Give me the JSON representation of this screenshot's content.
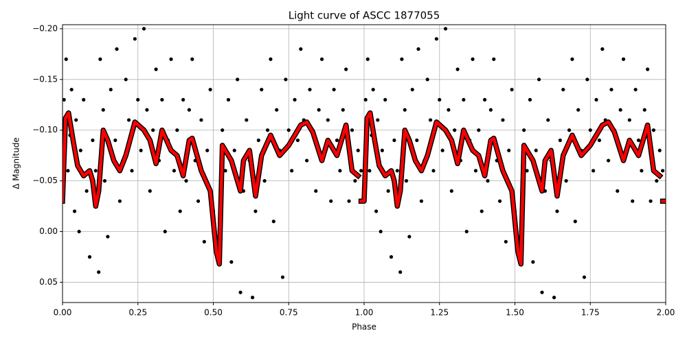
{
  "chart_data": {
    "type": "scatter",
    "title": "Light curve of ASCC 1877055",
    "xlabel": "Phase",
    "ylabel": "Δ Magnitude",
    "xlim": [
      0,
      2
    ],
    "ylim": [
      0.07,
      -0.204
    ],
    "xticks": [
      {
        "value": 0,
        "label": "0.00"
      },
      {
        "value": 0.25,
        "label": "0.25"
      },
      {
        "value": 0.5,
        "label": "0.50"
      },
      {
        "value": 0.75,
        "label": "0.75"
      },
      {
        "value": 1,
        "label": "1.00"
      },
      {
        "value": 1.25,
        "label": "1.25"
      },
      {
        "value": 1.5,
        "label": "1.50"
      },
      {
        "value": 1.75,
        "label": "1.75"
      },
      {
        "value": 2,
        "label": "2.00"
      }
    ],
    "yticks": [
      {
        "value": -0.2,
        "label": "−0.20"
      },
      {
        "value": -0.15,
        "label": "−0.15"
      },
      {
        "value": -0.1,
        "label": "−0.10"
      },
      {
        "value": -0.05,
        "label": "−0.05"
      },
      {
        "value": 0,
        "label": "0.00"
      },
      {
        "value": 0.05,
        "label": "0.05"
      }
    ],
    "grid": true,
    "points": {
      "color": "#000000",
      "x": [
        0.005,
        0.012,
        0.018,
        0.025,
        0.03,
        0.04,
        0.045,
        0.055,
        0.06,
        0.07,
        0.08,
        0.09,
        0.1,
        0.11,
        0.12,
        0.125,
        0.135,
        0.14,
        0.15,
        0.16,
        0.175,
        0.18,
        0.19,
        0.2,
        0.21,
        0.22,
        0.23,
        0.24,
        0.25,
        0.26,
        0.27,
        0.28,
        0.29,
        0.3,
        0.31,
        0.32,
        0.33,
        0.34,
        0.35,
        0.36,
        0.37,
        0.38,
        0.39,
        0.4,
        0.41,
        0.42,
        0.43,
        0.44,
        0.45,
        0.46,
        0.47,
        0.48,
        0.49,
        0.5,
        0.52,
        0.53,
        0.54,
        0.55,
        0.56,
        0.57,
        0.58,
        0.59,
        0.6,
        0.61,
        0.62,
        0.63,
        0.64,
        0.65,
        0.66,
        0.67,
        0.68,
        0.69,
        0.7,
        0.71,
        0.72,
        0.73,
        0.74,
        0.75,
        0.76,
        0.77,
        0.78,
        0.79,
        0.8,
        0.81,
        0.82,
        0.83,
        0.84,
        0.85,
        0.86,
        0.87,
        0.88,
        0.89,
        0.9,
        0.91,
        0.92,
        0.93,
        0.94,
        0.95,
        0.96,
        0.97,
        0.98,
        0.99,
        1.005,
        1.012,
        1.018,
        1.025,
        1.03,
        1.04,
        1.045,
        1.055,
        1.06,
        1.07,
        1.08,
        1.09,
        1.1,
        1.11,
        1.12,
        1.125,
        1.135,
        1.14,
        1.15,
        1.16,
        1.175,
        1.18,
        1.19,
        1.2,
        1.21,
        1.22,
        1.23,
        1.24,
        1.25,
        1.26,
        1.27,
        1.28,
        1.29,
        1.3,
        1.31,
        1.32,
        1.33,
        1.34,
        1.35,
        1.36,
        1.37,
        1.38,
        1.39,
        1.4,
        1.41,
        1.42,
        1.43,
        1.44,
        1.45,
        1.46,
        1.47,
        1.48,
        1.49,
        1.5,
        1.52,
        1.53,
        1.54,
        1.55,
        1.56,
        1.57,
        1.58,
        1.59,
        1.6,
        1.61,
        1.62,
        1.63,
        1.64,
        1.65,
        1.66,
        1.67,
        1.68,
        1.69,
        1.7,
        1.71,
        1.72,
        1.73,
        1.74,
        1.75,
        1.76,
        1.77,
        1.78,
        1.79,
        1.8,
        1.81,
        1.82,
        1.83,
        1.84,
        1.85,
        1.86,
        1.87,
        1.88,
        1.89,
        1.9,
        1.91,
        1.92,
        1.93,
        1.94,
        1.95,
        1.96,
        1.97,
        1.98,
        1.99
      ],
      "y": [
        -0.13,
        -0.17,
        -0.06,
        -0.095,
        -0.14,
        -0.02,
        -0.11,
        0.0,
        -0.08,
        -0.13,
        -0.04,
        0.025,
        -0.09,
        -0.06,
        0.04,
        -0.17,
        -0.12,
        -0.05,
        0.005,
        -0.14,
        -0.09,
        -0.18,
        -0.03,
        -0.07,
        -0.15,
        -0.11,
        -0.06,
        -0.19,
        -0.13,
        -0.08,
        -0.2,
        -0.12,
        -0.04,
        -0.1,
        -0.16,
        -0.07,
        -0.13,
        0.0,
        -0.09,
        -0.17,
        -0.06,
        -0.1,
        -0.02,
        -0.13,
        -0.05,
        -0.12,
        -0.17,
        -0.07,
        -0.03,
        -0.11,
        0.01,
        -0.08,
        -0.14,
        -0.02,
        0.025,
        -0.1,
        -0.06,
        -0.13,
        0.03,
        -0.08,
        -0.15,
        0.06,
        -0.04,
        -0.11,
        -0.07,
        0.065,
        -0.02,
        -0.09,
        -0.14,
        -0.05,
        -0.1,
        -0.17,
        -0.01,
        -0.12,
        -0.08,
        0.045,
        -0.15,
        -0.1,
        -0.06,
        -0.13,
        -0.09,
        -0.18,
        -0.11,
        -0.07,
        -0.14,
        -0.1,
        -0.04,
        -0.12,
        -0.17,
        -0.08,
        -0.11,
        -0.03,
        -0.14,
        -0.09,
        -0.06,
        -0.12,
        -0.16,
        -0.03,
        -0.1,
        -0.05,
        -0.08,
        -0.06,
        -0.13,
        -0.17,
        -0.06,
        -0.095,
        -0.14,
        -0.02,
        -0.11,
        0.0,
        -0.08,
        -0.13,
        -0.04,
        0.025,
        -0.09,
        -0.06,
        0.04,
        -0.17,
        -0.12,
        -0.05,
        0.005,
        -0.14,
        -0.09,
        -0.18,
        -0.03,
        -0.07,
        -0.15,
        -0.11,
        -0.06,
        -0.19,
        -0.13,
        -0.08,
        -0.2,
        -0.12,
        -0.04,
        -0.1,
        -0.16,
        -0.07,
        -0.13,
        0.0,
        -0.09,
        -0.17,
        -0.06,
        -0.1,
        -0.02,
        -0.13,
        -0.05,
        -0.12,
        -0.17,
        -0.07,
        -0.03,
        -0.11,
        0.01,
        -0.08,
        -0.14,
        -0.02,
        0.025,
        -0.1,
        -0.06,
        -0.13,
        0.03,
        -0.08,
        -0.15,
        0.06,
        -0.04,
        -0.11,
        -0.07,
        0.065,
        -0.02,
        -0.09,
        -0.14,
        -0.05,
        -0.1,
        -0.17,
        -0.01,
        -0.12,
        -0.08,
        0.045,
        -0.15,
        -0.1,
        -0.06,
        -0.13,
        -0.09,
        -0.18,
        -0.11,
        -0.07,
        -0.14,
        -0.1,
        -0.04,
        -0.12,
        -0.17,
        -0.08,
        -0.11,
        -0.03,
        -0.14,
        -0.09,
        -0.06,
        -0.12,
        -0.16,
        -0.03,
        -0.1,
        -0.05,
        -0.08,
        -0.06
      ]
    },
    "model": {
      "color": "#ff0000",
      "edgecolor": "#000000",
      "x": [
        0,
        0.01,
        0.02,
        0.035,
        0.05,
        0.07,
        0.09,
        0.1,
        0.11,
        0.12,
        0.135,
        0.15,
        0.17,
        0.19,
        0.21,
        0.24,
        0.27,
        0.29,
        0.31,
        0.33,
        0.36,
        0.38,
        0.4,
        0.42,
        0.43,
        0.46,
        0.49,
        0.51,
        0.52,
        0.53,
        0.56,
        0.58,
        0.59,
        0.6,
        0.62,
        0.64,
        0.66,
        0.69,
        0.72,
        0.75,
        0.79,
        0.81,
        0.83,
        0.86,
        0.88,
        0.91,
        0.94,
        0.96,
        0.98,
        0.985,
        0.99,
        1,
        1.01,
        1.02,
        1.035,
        1.05,
        1.07,
        1.09,
        1.1,
        1.11,
        1.12,
        1.135,
        1.15,
        1.17,
        1.19,
        1.21,
        1.24,
        1.27,
        1.29,
        1.31,
        1.33,
        1.36,
        1.38,
        1.4,
        1.42,
        1.43,
        1.46,
        1.49,
        1.51,
        1.52,
        1.53,
        1.56,
        1.58,
        1.59,
        1.6,
        1.62,
        1.64,
        1.66,
        1.69,
        1.72,
        1.75,
        1.79,
        1.81,
        1.83,
        1.86,
        1.88,
        1.91,
        1.94,
        1.96,
        1.98,
        1.985,
        1.99,
        2
      ],
      "y": [
        -0.03,
        -0.112,
        -0.117,
        -0.09,
        -0.065,
        -0.055,
        -0.06,
        -0.05,
        -0.025,
        -0.04,
        -0.1,
        -0.09,
        -0.07,
        -0.06,
        -0.075,
        -0.108,
        -0.1,
        -0.09,
        -0.067,
        -0.1,
        -0.08,
        -0.075,
        -0.055,
        -0.09,
        -0.092,
        -0.06,
        -0.04,
        0.02,
        0.032,
        -0.085,
        -0.07,
        -0.05,
        -0.04,
        -0.07,
        -0.08,
        -0.035,
        -0.075,
        -0.095,
        -0.075,
        -0.085,
        -0.105,
        -0.108,
        -0.098,
        -0.07,
        -0.09,
        -0.075,
        -0.105,
        -0.06,
        -0.055,
        null,
        -0.03,
        -0.03,
        -0.112,
        -0.117,
        -0.09,
        -0.065,
        -0.055,
        -0.06,
        -0.05,
        -0.025,
        -0.04,
        -0.1,
        -0.09,
        -0.07,
        -0.06,
        -0.075,
        -0.108,
        -0.1,
        -0.09,
        -0.067,
        -0.1,
        -0.08,
        -0.075,
        -0.055,
        -0.09,
        -0.092,
        -0.06,
        -0.04,
        0.02,
        0.032,
        -0.085,
        -0.07,
        -0.05,
        -0.04,
        -0.07,
        -0.08,
        -0.035,
        -0.075,
        -0.095,
        -0.075,
        -0.085,
        -0.105,
        -0.108,
        -0.098,
        -0.07,
        -0.09,
        -0.075,
        -0.105,
        -0.06,
        -0.055,
        null,
        -0.03,
        -0.03
      ]
    }
  }
}
